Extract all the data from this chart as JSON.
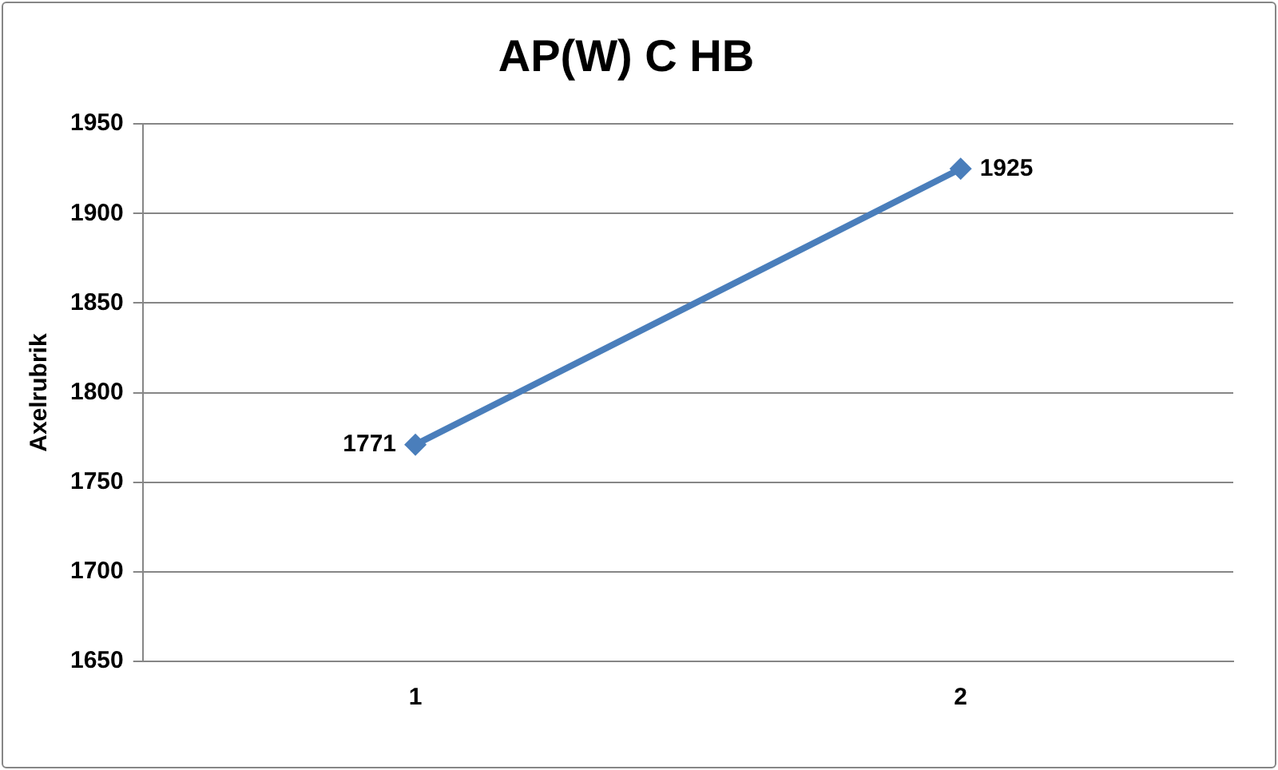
{
  "chart_data": {
    "type": "line",
    "title": "AP(W) C HB",
    "ylabel": "Axelrubrik",
    "categories": [
      "1",
      "2"
    ],
    "series": [
      {
        "color": "#4a7ebb",
        "values": [
          1771,
          1925
        ]
      }
    ],
    "ylim": [
      1650,
      1950
    ],
    "yticks": [
      1650,
      1700,
      1750,
      1800,
      1850,
      1900,
      1950
    ],
    "grid": "y",
    "legend": false,
    "marker": "diamond",
    "line_style": "solid",
    "data_labels": true
  }
}
